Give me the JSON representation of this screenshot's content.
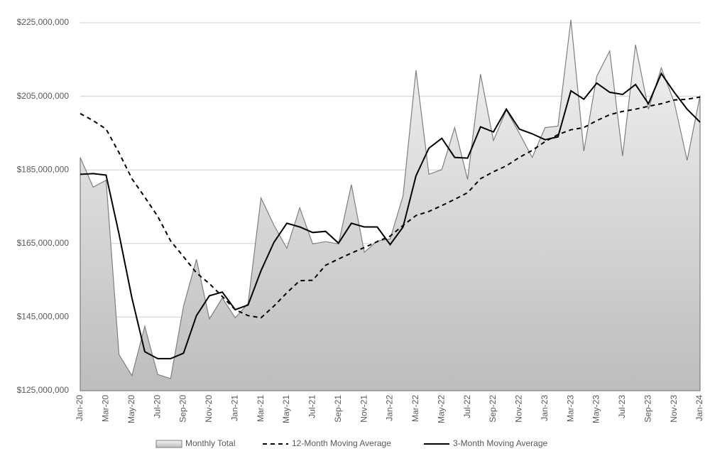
{
  "chart_data": {
    "type": "line",
    "categories": [
      "Jan-20",
      null,
      "Mar-20",
      null,
      "May-20",
      null,
      "Jul-20",
      null,
      "Sep-20",
      null,
      "Nov-20",
      null,
      "Jan-21",
      null,
      "Mar-21",
      null,
      "May-21",
      null,
      "Jul-21",
      null,
      "Sep-21",
      null,
      "Nov-21",
      null,
      "Jan-22",
      null,
      "Mar-22",
      null,
      "May-22",
      null,
      "Jul-22",
      null,
      "Sep-22",
      null,
      "Nov-22",
      null,
      "Jan-23",
      null,
      "Mar-23",
      null,
      "May-23",
      null,
      "Jul-23",
      null,
      "Sep-23",
      null,
      "Nov-23",
      null,
      "Jan-24"
    ],
    "series": [
      {
        "name": "Monthly Total",
        "type": "area",
        "color": "#7f7f7f",
        "values": [
          188400000,
          180300000,
          182200000,
          134800000,
          129100000,
          142500000,
          129400000,
          128300000,
          148000000,
          160700000,
          144500000,
          150200000,
          144800000,
          148700000,
          177400000,
          170000000,
          163700000,
          174700000,
          164900000,
          165500000,
          164900000,
          181000000,
          162600000,
          165700000,
          166200000,
          178000000,
          212100000,
          183800000,
          185100000,
          196500000,
          182400000,
          211000000,
          193000000,
          201300000,
          195000000,
          188400000,
          196500000,
          196900000,
          225800000,
          190100000,
          210400000,
          217300000,
          188800000,
          219000000,
          201500000,
          212700000,
          203400000,
          187600000,
          205200000
        ]
      },
      {
        "name": "12-Month Moving Average",
        "type": "line",
        "dash": true,
        "color": "#000000",
        "values": [
          200300000,
          198400000,
          196100000,
          189700000,
          182600000,
          177600000,
          172400000,
          165700000,
          161400000,
          157000000,
          154100000,
          150600000,
          147000000,
          145400000,
          144800000,
          148000000,
          151600000,
          154900000,
          155000000,
          159100000,
          160800000,
          162400000,
          163900000,
          165500000,
          167000000,
          169900000,
          172600000,
          173700000,
          175300000,
          177000000,
          178800000,
          182600000,
          184500000,
          186100000,
          188400000,
          190300000,
          192700000,
          194600000,
          195900000,
          196500000,
          198400000,
          200000000,
          200900000,
          201500000,
          202300000,
          203000000,
          204000000,
          204200000,
          204800000
        ]
      },
      {
        "name": "3-Month Moving Average",
        "type": "line",
        "dash": false,
        "color": "#000000",
        "values": [
          183800000,
          184000000,
          183600000,
          167600000,
          150200000,
          135600000,
          133700000,
          133700000,
          135200000,
          145400000,
          150800000,
          151800000,
          147000000,
          148300000,
          157600000,
          165300000,
          170500000,
          169500000,
          168000000,
          168300000,
          165100000,
          170500000,
          169500000,
          169500000,
          164700000,
          169500000,
          183400000,
          190900000,
          193600000,
          188400000,
          188200000,
          196700000,
          195300000,
          201500000,
          196100000,
          194800000,
          193200000,
          194000000,
          206500000,
          204200000,
          208600000,
          206100000,
          205500000,
          208200000,
          203000000,
          211200000,
          206100000,
          201500000,
          198000000
        ]
      }
    ],
    "ylim": [
      125000000,
      225000000
    ],
    "yticks": [
      {
        "value": 125000000,
        "label": "$125,000,000"
      },
      {
        "value": 145000000,
        "label": "$145,000,000"
      },
      {
        "value": 165000000,
        "label": "$165,000,000"
      },
      {
        "value": 185000000,
        "label": "$185,000,000"
      },
      {
        "value": 205000000,
        "label": "$205,000,000"
      },
      {
        "value": 225000000,
        "label": "$225,000,000"
      }
    ],
    "grid": true,
    "legend": "bottom"
  }
}
